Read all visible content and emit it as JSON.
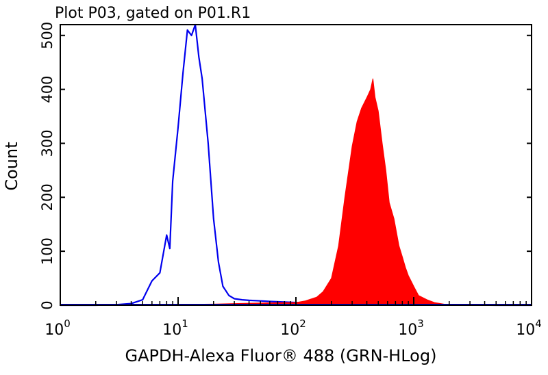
{
  "chart_data": {
    "type": "area",
    "title": "Plot P03, gated on P01.R1",
    "xlabel": "GAPDH-Alexa Fluor® 488 (GRN-HLog)",
    "ylabel": "Count",
    "x_scale": "log",
    "xlim": [
      1,
      10000
    ],
    "ylim": [
      0,
      520
    ],
    "x_ticks": [
      {
        "base": "10",
        "exp": "0"
      },
      {
        "base": "10",
        "exp": "1"
      },
      {
        "base": "10",
        "exp": "2"
      },
      {
        "base": "10",
        "exp": "3"
      },
      {
        "base": "10",
        "exp": "4"
      }
    ],
    "y_ticks": [
      "0",
      "100",
      "200",
      "300",
      "400",
      "500"
    ],
    "series": [
      {
        "style": "line",
        "color": "#0000ee",
        "x": [
          1,
          2,
          3,
          4,
          5,
          6,
          7,
          8,
          8.5,
          9,
          10,
          11,
          12,
          13,
          14,
          15,
          16,
          18,
          20,
          22,
          24,
          27,
          30,
          35,
          40,
          50,
          60,
          80,
          100,
          150,
          200,
          300,
          500,
          1000,
          2000,
          5000,
          10000
        ],
        "y": [
          0,
          0,
          1,
          3,
          10,
          45,
          60,
          130,
          105,
          230,
          330,
          430,
          510,
          500,
          520,
          460,
          420,
          300,
          160,
          80,
          35,
          18,
          12,
          10,
          9,
          8,
          7,
          6,
          5,
          4,
          3,
          2,
          2,
          1,
          1,
          0,
          0
        ]
      },
      {
        "style": "filled",
        "color": "#ff0000",
        "x": [
          1,
          20,
          30,
          50,
          80,
          100,
          120,
          150,
          170,
          200,
          230,
          260,
          300,
          330,
          360,
          400,
          430,
          450,
          470,
          500,
          540,
          580,
          620,
          680,
          750,
          800,
          850,
          900,
          1000,
          1100,
          1300,
          1500,
          1800,
          2000,
          10000
        ],
        "y": [
          0,
          2,
          3,
          4,
          5,
          5,
          8,
          15,
          25,
          50,
          110,
          200,
          295,
          340,
          365,
          385,
          400,
          420,
          385,
          360,
          300,
          250,
          190,
          160,
          110,
          90,
          70,
          55,
          35,
          18,
          10,
          5,
          2,
          0,
          0
        ]
      }
    ]
  }
}
